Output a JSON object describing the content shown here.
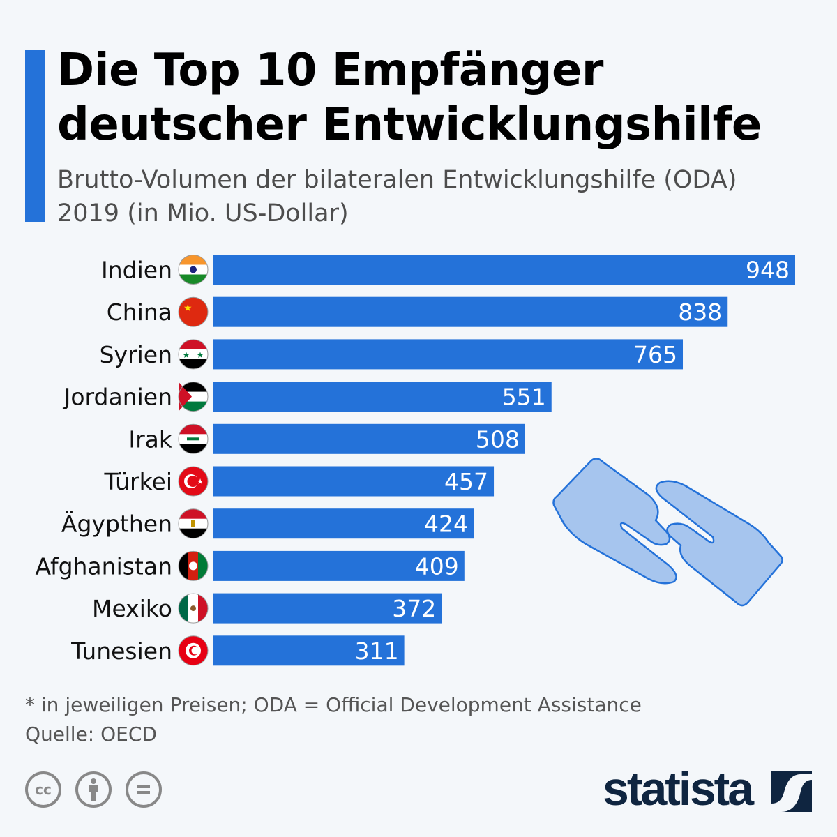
{
  "header": {
    "title_line1": "Die Top 10 Empfänger",
    "title_line2": "deutscher Entwicklungshilfe",
    "subtitle_line1": "Brutto-Volumen der bilateralen Entwicklungshilfe (ODA)",
    "subtitle_line2": "2019 (in Mio. US-Dollar)"
  },
  "chart_data": {
    "type": "bar",
    "orientation": "horizontal",
    "categories": [
      "Indien",
      "China",
      "Syrien",
      "Jordanien",
      "Irak",
      "Türkei",
      "Ägypthen",
      "Afghanistan",
      "Mexiko",
      "Tunesien"
    ],
    "values": [
      948,
      838,
      765,
      551,
      508,
      457,
      424,
      409,
      372,
      311
    ],
    "value_labels": [
      "948",
      "838",
      "765",
      "551",
      "508",
      "457",
      "424",
      "409",
      "372",
      "311"
    ],
    "flags": [
      "india",
      "china",
      "syria",
      "jordan",
      "iraq",
      "turkey",
      "egypt",
      "afghanistan",
      "mexico",
      "tunisia"
    ],
    "bar_color": "#2472d9",
    "xlim": [
      0,
      948
    ],
    "grid": false
  },
  "footer": {
    "note": "* in jeweiligen Preisen; ODA = Official Development Assistance",
    "source": "Quelle: OECD",
    "license_icons": [
      "cc-icon",
      "by-icon",
      "nd-icon"
    ],
    "cc_label": "cc",
    "brand": "statista"
  },
  "colors": {
    "accent": "#2472d9",
    "brand": "#0f2540"
  }
}
